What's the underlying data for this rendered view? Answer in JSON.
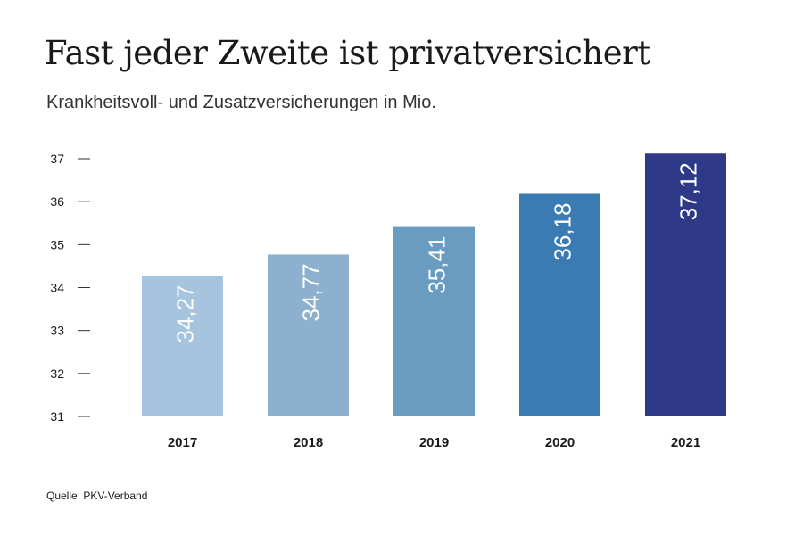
{
  "title": "Fast jeder Zweite ist privatversichert",
  "subtitle": "Krankheitsvoll- und Zusatzversicherungen in Mio.",
  "source": "Quelle: PKV-Verband",
  "chart_data": {
    "type": "bar",
    "categories": [
      "2017",
      "2018",
      "2019",
      "2020",
      "2021"
    ],
    "values": [
      34.27,
      34.77,
      35.41,
      36.18,
      37.12
    ],
    "value_labels": [
      "34,27",
      "34,77",
      "35,41",
      "36,18",
      "37,12"
    ],
    "bar_colors": [
      "#a6c4dd",
      "#8cb0cd",
      "#6a9cc2",
      "#3a7bb4",
      "#2e3a88"
    ],
    "yticks": [
      "31",
      "32",
      "33",
      "34",
      "35",
      "36",
      "37"
    ],
    "ylim": [
      31,
      37
    ],
    "grid": false
  }
}
